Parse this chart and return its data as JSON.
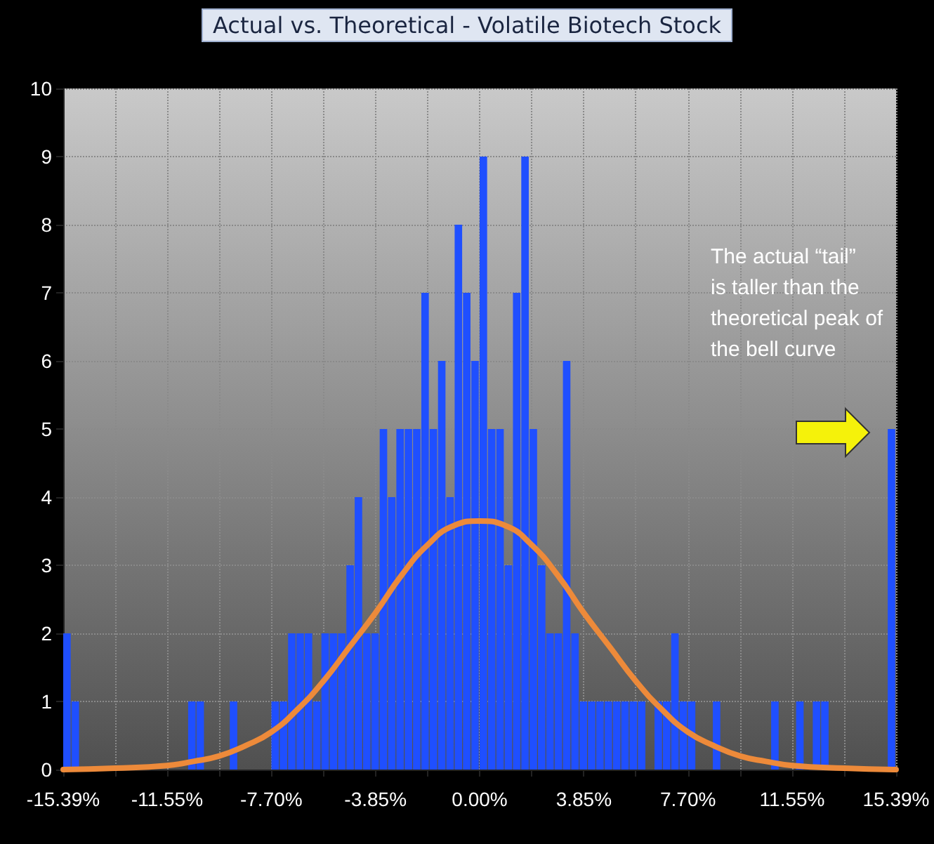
{
  "chart_data": {
    "type": "histogram",
    "title": "Actual vs. Theoretical - Volatile Biotech Stock",
    "series": [
      {
        "color": "#1f4fff",
        "bins": [
          -15.39,
          -15.0822,
          -14.7744,
          -14.4666,
          -14.1588,
          -13.851,
          -13.5432,
          -13.2354,
          -12.9276,
          -12.6198,
          -12.312,
          -12.0042,
          -11.6964,
          -11.3886,
          -11.0808,
          -10.773,
          -10.4652,
          -10.1574,
          -9.8496,
          -9.5418,
          -9.234,
          -8.9262,
          -8.6184,
          -8.3106,
          -8.0028,
          -7.695,
          -7.3872,
          -7.0794,
          -6.7716,
          -6.4638,
          -6.156,
          -5.8482,
          -5.5404,
          -5.2326,
          -4.9248,
          -4.617,
          -4.3092,
          -4.0014,
          -3.6936,
          -3.3858,
          -3.078,
          -2.7702,
          -2.4624,
          -2.1546,
          -1.8468,
          -1.539,
          -1.2312,
          -0.9234,
          -0.6156,
          -0.3078,
          0,
          0.3078,
          0.6156,
          0.9234,
          1.2312,
          1.539,
          1.8468,
          2.1546,
          2.4624,
          2.7702,
          3.078,
          3.3858,
          3.6936,
          4.0014,
          4.3092,
          4.617,
          4.9248,
          5.2326,
          5.5404,
          5.8482,
          6.156,
          6.4638,
          6.7716,
          7.0794,
          7.3872,
          7.695,
          8.0028,
          8.3106,
          8.6184,
          8.9262,
          9.234,
          9.5418,
          9.8496,
          10.1574,
          10.4652,
          10.773,
          11.0808,
          11.3886,
          11.6964,
          12.0042,
          12.312,
          12.6198,
          12.9276,
          13.2354,
          13.5432,
          13.851,
          14.1588,
          14.4666,
          14.7744,
          15.0822,
          15.39
        ],
        "values": [
          2,
          1,
          0,
          0,
          0,
          0,
          0,
          0,
          0,
          0,
          0,
          0,
          0,
          0,
          0,
          1,
          1,
          0,
          0,
          0,
          1,
          0,
          0,
          0,
          0,
          1,
          1,
          2,
          2,
          2,
          1,
          2,
          2,
          2,
          3,
          4,
          2,
          2,
          5,
          4,
          5,
          5,
          5,
          7,
          5,
          6,
          4,
          8,
          7,
          6,
          9,
          5,
          5,
          3,
          7,
          9,
          5,
          3,
          2,
          2,
          6,
          2,
          1,
          1,
          1,
          1,
          1,
          1,
          1,
          1,
          0,
          1,
          1,
          2,
          1,
          1,
          0,
          0,
          1,
          0,
          0,
          0,
          0,
          0,
          0,
          1,
          0,
          0,
          1,
          0,
          1,
          1,
          0,
          0,
          0,
          0,
          0,
          0,
          0,
          5
        ]
      },
      {
        "type": "line",
        "color": "#ed8a3a",
        "x": [
          -15.39,
          -13.47,
          -11.55,
          -10.58,
          -9.62,
          -8.66,
          -7.7,
          -6.74,
          -5.77,
          -4.81,
          -3.85,
          -2.89,
          -1.92,
          -0.96,
          0,
          0.96,
          1.92,
          2.89,
          3.85,
          4.81,
          5.77,
          6.74,
          7.7,
          8.66,
          9.62,
          10.58,
          11.55,
          13.47,
          15.39
        ],
        "values": [
          0,
          0.02,
          0.06,
          0.12,
          0.2,
          0.35,
          0.55,
          0.88,
          1.3,
          1.8,
          2.3,
          2.85,
          3.3,
          3.58,
          3.65,
          3.58,
          3.3,
          2.85,
          2.3,
          1.8,
          1.3,
          0.88,
          0.55,
          0.35,
          0.2,
          0.12,
          0.06,
          0.02,
          0
        ]
      }
    ],
    "xlim": [
      -15.39,
      15.39
    ],
    "xticks": [
      {
        "value": -15.39,
        "label": "-15.39%"
      },
      {
        "value": -13.47,
        "label": null
      },
      {
        "value": -11.55,
        "label": "-11.55%"
      },
      {
        "value": -9.62,
        "label": null
      },
      {
        "value": -7.7,
        "label": "-7.70%"
      },
      {
        "value": -5.77,
        "label": null
      },
      {
        "value": -3.85,
        "label": "-3.85%"
      },
      {
        "value": -1.92,
        "label": null
      },
      {
        "value": 0,
        "label": "0.00%"
      },
      {
        "value": 1.92,
        "label": null
      },
      {
        "value": 3.85,
        "label": "3.85%"
      },
      {
        "value": 5.77,
        "label": null
      },
      {
        "value": 7.7,
        "label": "7.70%"
      },
      {
        "value": 9.62,
        "label": null
      },
      {
        "value": 11.55,
        "label": "11.55%"
      },
      {
        "value": 13.47,
        "label": null
      },
      {
        "value": 15.39,
        "label": "15.39%"
      }
    ],
    "ylim": [
      0,
      10
    ],
    "yticks": [
      0,
      1,
      2,
      3,
      4,
      5,
      6,
      7,
      8,
      9,
      10
    ],
    "grid": true,
    "annotations": [
      "The actual “tail” is taller than the theoretical peak of the bell curve"
    ]
  }
}
